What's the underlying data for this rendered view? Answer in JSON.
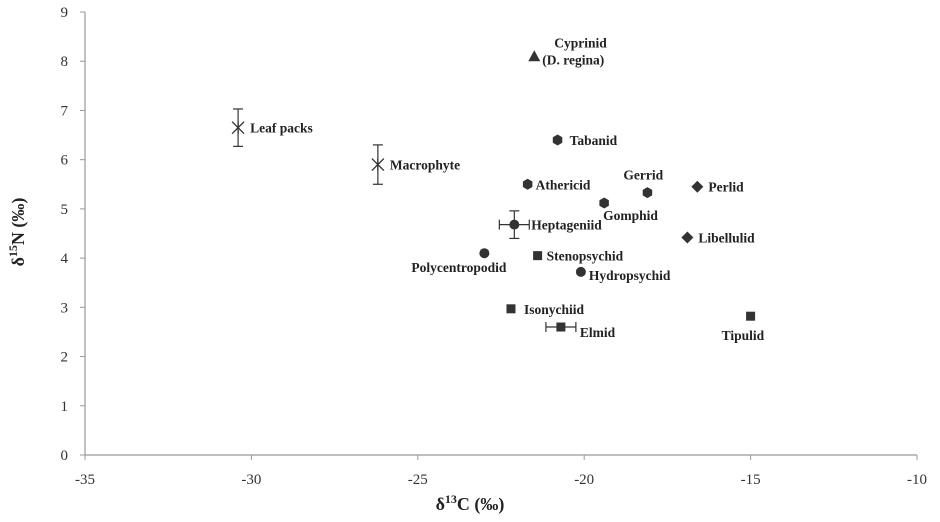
{
  "chart_data": {
    "type": "scatter",
    "xlabel": {
      "delta": "δ",
      "sup": "13",
      "rest": "C (‰)"
    },
    "ylabel": {
      "delta": "δ",
      "sup": "15",
      "rest": "N (‰)"
    },
    "xlim": [
      -35,
      -10
    ],
    "ylim": [
      0,
      9
    ],
    "x_ticks": [
      "-35",
      "-30",
      "-25",
      "-20",
      "-15",
      "-10"
    ],
    "y_ticks": [
      "0",
      "1",
      "2",
      "3",
      "4",
      "5",
      "6",
      "7",
      "8",
      "9"
    ],
    "grid": false,
    "points": [
      {
        "name": "Leaf packs",
        "x": -30.4,
        "y": 6.65,
        "y_err": 0.38,
        "marker": "star"
      },
      {
        "name": "Macrophyte",
        "x": -26.2,
        "y": 5.9,
        "y_err": 0.4,
        "marker": "star"
      },
      {
        "name": "Cyprinid",
        "name2": "(D. regina)",
        "x": -21.5,
        "y": 8.1,
        "marker": "triangle"
      },
      {
        "name": "Tabanid",
        "x": -20.8,
        "y": 6.4,
        "marker": "hexagon"
      },
      {
        "name": "Athericid",
        "x": -21.7,
        "y": 5.5,
        "marker": "hexagon"
      },
      {
        "name": "Gerrid",
        "x": -18.1,
        "y": 5.33,
        "marker": "hexagon"
      },
      {
        "name": "Gomphid",
        "x": -19.4,
        "y": 5.12,
        "marker": "hexagon"
      },
      {
        "name": "Perlid",
        "x": -16.6,
        "y": 5.45,
        "marker": "diamond"
      },
      {
        "name": "Heptageniid",
        "x": -22.1,
        "y": 4.68,
        "x_err": 0.45,
        "y_err": 0.28,
        "marker": "circle"
      },
      {
        "name": "Libellulid",
        "x": -16.9,
        "y": 4.42,
        "marker": "diamond"
      },
      {
        "name": "Stenopsychid",
        "x": -21.4,
        "y": 4.05,
        "marker": "square"
      },
      {
        "name": "Polycentropodid",
        "x": -23.0,
        "y": 4.1,
        "marker": "circle"
      },
      {
        "name": "Hydropsychid",
        "x": -20.1,
        "y": 3.72,
        "marker": "circle"
      },
      {
        "name": "Isonychiid",
        "x": -22.2,
        "y": 2.97,
        "marker": "square"
      },
      {
        "name": "Elmid",
        "x": -20.7,
        "y": 2.6,
        "x_err": 0.45,
        "marker": "square"
      },
      {
        "name": "Tipulid",
        "x": -15.0,
        "y": 2.82,
        "marker": "square"
      }
    ],
    "colors": {
      "marker": "#333333",
      "axis": "#999999",
      "text": "#222222"
    }
  }
}
